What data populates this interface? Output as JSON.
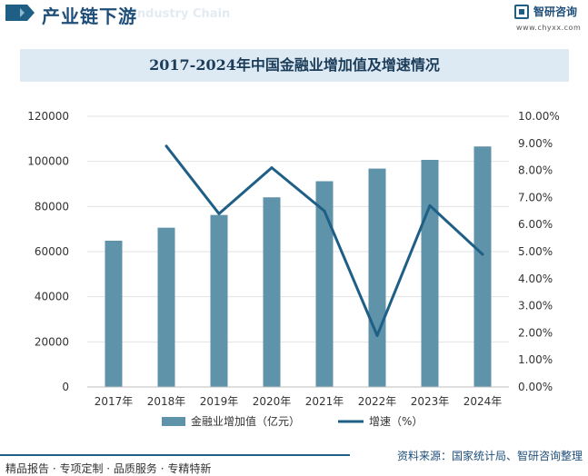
{
  "header": {
    "title": "产业链下游",
    "watermark": "Industry Chain"
  },
  "logo": {
    "name": "智研咨询",
    "url": "www.chyxx.com"
  },
  "chart_data": {
    "type": "bar",
    "title": "2017-2024年中国金融业增加值及增速情况",
    "categories": [
      "2017年",
      "2018年",
      "2019年",
      "2020年",
      "2021年",
      "2022年",
      "2023年",
      "2024年"
    ],
    "series": [
      {
        "name": "金融业增加值（亿元）",
        "type": "bar",
        "axis": "left",
        "color": "#5f93aa",
        "values": [
          64844,
          70610,
          76250,
          84070,
          91206,
          96811,
          100677,
          106617
        ]
      },
      {
        "name": "增速（%）",
        "type": "line",
        "axis": "right",
        "color": "#1f5f86",
        "values": [
          null,
          8.9,
          6.4,
          8.1,
          6.5,
          1.9,
          6.7,
          4.9
        ]
      }
    ],
    "y_left": {
      "min": 0,
      "max": 120000,
      "ticks": [
        "0",
        "20000",
        "40000",
        "60000",
        "80000",
        "100000",
        "120000"
      ]
    },
    "y_right": {
      "min": 0,
      "max": 10,
      "ticks": [
        "0.00%",
        "1.00%",
        "2.00%",
        "3.00%",
        "4.00%",
        "5.00%",
        "6.00%",
        "7.00%",
        "8.00%",
        "9.00%",
        "10.00%"
      ]
    },
    "grid": "horizontal",
    "legend": "bottom"
  },
  "footer": {
    "note": "精品报告 · 专项定制 · 品质服务 · 专精特新",
    "source": "资料来源：国家统计局、智研咨询整理"
  }
}
